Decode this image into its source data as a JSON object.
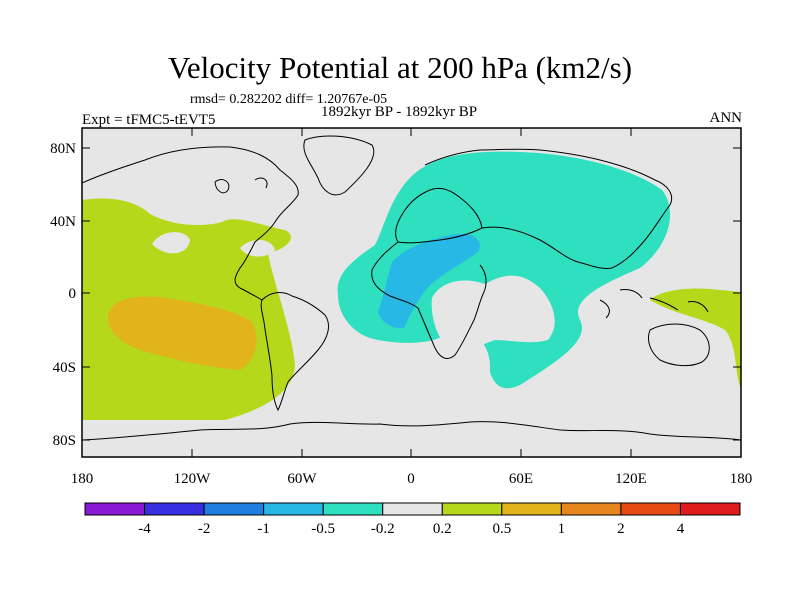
{
  "title": "Velocity Potential at 200 hPa (km2/s)",
  "stats_line": "rmsd= 0.282202 diff= 1.20767e-05",
  "period": "1892kyr BP - 1892kyr BP",
  "experiment": "Expt = tFMC5-tEVT5",
  "season": "ANN",
  "lat_ticks": [
    "80N",
    "40N",
    "0",
    "40S",
    "80S"
  ],
  "lon_ticks": [
    "180",
    "120W",
    "60W",
    "0",
    "60E",
    "120E",
    "180"
  ],
  "colorbar": {
    "colors": [
      "#8a19d6",
      "#3a2fe0",
      "#1e7fe0",
      "#27b8e6",
      "#2ee0c0",
      "#e6e6e6",
      "#b5d91a",
      "#e0b41a",
      "#e8861e",
      "#e84a14",
      "#e01b1b"
    ],
    "labels": [
      "-4",
      "-2",
      "-1",
      "-0.5",
      "-0.2",
      "0.2",
      "0.5",
      "1",
      "2",
      "4"
    ]
  },
  "palette": {
    "ocean_neutral": "#e6e6e6",
    "positive_weak": "#b5d91a",
    "positive_mid": "#e0b41a",
    "negative_weak": "#2ee0c0",
    "negative_mid": "#27b8e6"
  }
}
